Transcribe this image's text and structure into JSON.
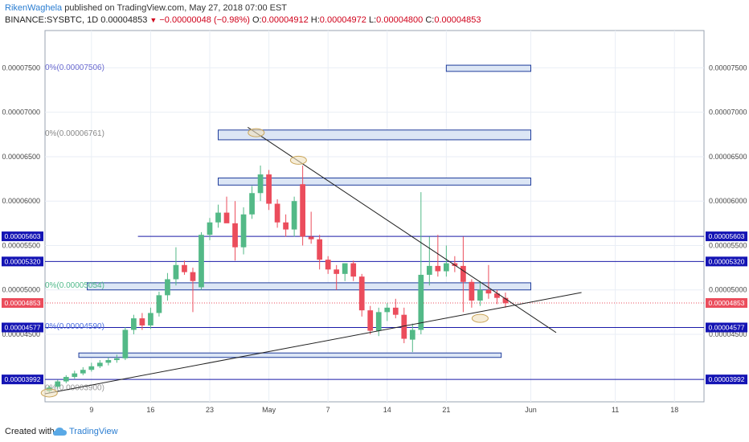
{
  "header": {
    "author": "RikenWaghela",
    "published_text": "published on TradingView.com, May 27, 2018 07:00 EST",
    "symbol": "BINANCE:SYSBTC, 1D",
    "last": "0.00004853",
    "change_arrow": "▼",
    "change": "−0.00000048 (−0.98%)",
    "o_label": "O:",
    "o_value": "0.00004912",
    "h_label": "H:",
    "h_value": "0.00004972",
    "l_label": "L:",
    "l_value": "0.00004800",
    "c_label": "C:",
    "c_value": "0.00004853"
  },
  "footer": {
    "created_with": "Created with",
    "brand": "TradingView"
  },
  "colors": {
    "up": "#53b987",
    "down": "#eb4d5c",
    "level_line": "#1a1aa8",
    "box_fill": "#dce6f5",
    "box_stroke": "#1f3d9c",
    "grid": "#e9eef5",
    "price_label_bg": "#1414b4"
  },
  "chart_data": {
    "type": "candlestick",
    "y_axis": {
      "min": 3.74e-05,
      "max": 7.92e-05,
      "ticks": [
        "0.00007500",
        "0.00007000",
        "0.00006500",
        "0.00006000",
        "0.00005500",
        "0.00005000",
        "0.00004500"
      ],
      "tick_values": [
        7.5e-05,
        7e-05,
        6.5e-05,
        6e-05,
        5.5e-05,
        5e-05,
        4.5e-05
      ]
    },
    "x_axis": {
      "ticks": [
        {
          "label": "9",
          "day": 9
        },
        {
          "label": "16",
          "day": 16
        },
        {
          "label": "23",
          "day": 23
        },
        {
          "label": "May",
          "day": 30
        },
        {
          "label": "7",
          "day": 37
        },
        {
          "label": "14",
          "day": 44
        },
        {
          "label": "21",
          "day": 51
        },
        {
          "label": "Jun",
          "day": 61
        },
        {
          "label": "11",
          "day": 71
        },
        {
          "label": "18",
          "day": 78
        }
      ],
      "day_min": 3.5,
      "day_max": 81.5
    },
    "candles": [
      [
        4,
        3.86e-05,
        3.92e-05,
        3.84e-05,
        3.9e-05
      ],
      [
        5,
        3.91e-05,
        3.99e-05,
        3.89e-05,
        3.97e-05
      ],
      [
        6,
        3.97e-05,
        4.04e-05,
        3.95e-05,
        4.02e-05
      ],
      [
        7,
        4.02e-05,
        4.09e-05,
        4e-05,
        4.06e-05
      ],
      [
        8,
        4.06e-05,
        4.13e-05,
        4.04e-05,
        4.1e-05
      ],
      [
        9,
        4.1e-05,
        4.18e-05,
        4.08e-05,
        4.14e-05
      ],
      [
        10,
        4.14e-05,
        4.21e-05,
        4.12e-05,
        4.18e-05
      ],
      [
        11,
        4.18e-05,
        4.24e-05,
        4.15e-05,
        4.21e-05
      ],
      [
        12,
        4.21e-05,
        4.27e-05,
        4.18e-05,
        4.23e-05
      ],
      [
        13,
        4.23e-05,
        4.58e-05,
        4.21e-05,
        4.55e-05
      ],
      [
        14,
        4.55e-05,
        4.72e-05,
        4.5e-05,
        4.68e-05
      ],
      [
        15,
        4.68e-05,
        4.74e-05,
        4.55e-05,
        4.6e-05
      ],
      [
        16,
        4.6e-05,
        4.8e-05,
        4.56e-05,
        4.74e-05
      ],
      [
        17,
        4.74e-05,
        4.98e-05,
        4.7e-05,
        4.94e-05
      ],
      [
        18,
        4.94e-05,
        5.19e-05,
        4.88e-05,
        5.12e-05
      ],
      [
        19,
        5.12e-05,
        5.48e-05,
        5.05e-05,
        5.28e-05
      ],
      [
        20,
        5.28e-05,
        5.33e-05,
        5.17e-05,
        5.2e-05
      ],
      [
        21,
        5.2e-05,
        5.25e-05,
        4.75e-05,
        5.1e-05
      ],
      [
        22,
        5.03e-05,
        5.65e-05,
        5e-05,
        5.62e-05
      ],
      [
        23,
        5.62e-05,
        5.81e-05,
        5.56e-05,
        5.76e-05
      ],
      [
        24,
        5.76e-05,
        5.96e-05,
        5.7e-05,
        5.87e-05
      ],
      [
        25,
        5.87e-05,
        6.05e-05,
        5.78e-05,
        5.75e-05
      ],
      [
        26,
        5.75e-05,
        6e-05,
        5.33e-05,
        5.48e-05
      ],
      [
        27,
        5.48e-05,
        5.93e-05,
        5.4e-05,
        5.85e-05
      ],
      [
        28,
        5.85e-05,
        6.17e-05,
        5.8e-05,
        6.09e-05
      ],
      [
        29,
        6.09e-05,
        6.4e-05,
        6e-05,
        6.3e-05
      ],
      [
        30,
        6.3e-05,
        6.35e-05,
        5.9e-05,
        5.97e-05
      ],
      [
        31,
        5.97e-05,
        6.02e-05,
        5.7e-05,
        5.76e-05
      ],
      [
        32,
        5.76e-05,
        5.85e-05,
        5.6e-05,
        5.68e-05
      ],
      [
        33,
        5.68e-05,
        6.05e-05,
        5.6e-05,
        6e-05
      ],
      [
        34,
        6.19e-05,
        6.4e-05,
        5.5e-05,
        5.6e-05
      ],
      [
        35,
        5.6e-05,
        5.88e-05,
        5.52e-05,
        5.57e-05
      ],
      [
        36,
        5.57e-05,
        5.62e-05,
        5.23e-05,
        5.34e-05
      ],
      [
        37,
        5.34e-05,
        5.38e-05,
        5.18e-05,
        5.23e-05
      ],
      [
        38,
        5.23e-05,
        5.28e-05,
        5e-05,
        5.18e-05
      ],
      [
        39,
        5.18e-05,
        5.3e-05,
        5.1e-05,
        5.3e-05
      ],
      [
        40,
        5.3e-05,
        5.33e-05,
        5.1e-05,
        5.15e-05
      ],
      [
        41,
        5.15e-05,
        5.18e-05,
        4.7e-05,
        4.77e-05
      ],
      [
        42,
        4.77e-05,
        4.82e-05,
        4.5e-05,
        4.54e-05
      ],
      [
        43,
        4.54e-05,
        4.8e-05,
        4.48e-05,
        4.75e-05
      ],
      [
        44,
        4.75e-05,
        4.85e-05,
        4.65e-05,
        4.8e-05
      ],
      [
        45,
        4.8e-05,
        4.9e-05,
        4.68e-05,
        4.72e-05
      ],
      [
        46,
        4.72e-05,
        4.8e-05,
        4.4e-05,
        4.45e-05
      ],
      [
        47,
        4.44e-05,
        4.62e-05,
        4.3e-05,
        4.55e-05
      ],
      [
        48,
        4.55e-05,
        6.1e-05,
        4.5e-05,
        5.17e-05
      ],
      [
        49,
        5.17e-05,
        5.6e-05,
        5.05e-05,
        5.27e-05
      ],
      [
        50,
        5.27e-05,
        5.62e-05,
        5.15e-05,
        5.21e-05
      ],
      [
        51,
        5.21e-05,
        5.5e-05,
        5.15e-05,
        5.3e-05
      ],
      [
        52,
        5.3e-05,
        5.38e-05,
        5.2e-05,
        5.27e-05
      ],
      [
        53,
        5.27e-05,
        5.6e-05,
        4.75e-05,
        5.09e-05
      ],
      [
        54,
        5.09e-05,
        5.12e-05,
        4.8e-05,
        4.88e-05
      ],
      [
        55,
        4.88e-05,
        5.1e-05,
        4.82e-05,
        5e-05
      ],
      [
        56,
        5e-05,
        5.28e-05,
        4.9e-05,
        4.96e-05
      ],
      [
        57,
        4.96e-05,
        5e-05,
        4.84e-05,
        4.91e-05
      ],
      [
        58,
        4.91e-05,
        4.97e-05,
        4.8e-05,
        4.85e-05
      ]
    ],
    "levels": [
      {
        "price": 5.603e-05,
        "label": "0.00005603",
        "day_start": 14.5
      },
      {
        "price": 5.32e-05,
        "label": "0.00005320",
        "day_start": 3.5
      },
      {
        "price": 4.577e-05,
        "label": "0.00004577",
        "day_start": 3.5
      },
      {
        "price": 3.992e-05,
        "label": "0.00003992",
        "day_start": 3.5
      }
    ],
    "current_price": {
      "price": 4.853e-05,
      "label": "0.00004853"
    },
    "zones": [
      {
        "day_start": 51,
        "day_end": 61,
        "top": 7.53e-05,
        "bottom": 7.46e-05
      },
      {
        "day_start": 24,
        "day_end": 61,
        "top": 6.8e-05,
        "bottom": 6.69e-05
      },
      {
        "day_start": 24,
        "day_end": 61,
        "top": 6.26e-05,
        "bottom": 6.18e-05
      },
      {
        "day_start": 8.5,
        "day_end": 61,
        "top": 5.08e-05,
        "bottom": 5e-05
      },
      {
        "day_start": 7.5,
        "day_end": 57.5,
        "top": 4.29e-05,
        "bottom": 4.24e-05
      }
    ],
    "fib_labels": [
      {
        "text": "0%(0.00007506)",
        "price": 7.506e-05,
        "day": 3.5,
        "color": "#6a6ad0"
      },
      {
        "text": "0%(0.00006761)",
        "price": 6.761e-05,
        "day": 3.5,
        "color": "#888888"
      },
      {
        "text": "0%(0.00005054)",
        "price": 5.054e-05,
        "day": 3.5,
        "color": "#4fb98a"
      },
      {
        "text": "0%(0.00004590)",
        "price": 4.59e-05,
        "day": 3.5,
        "color": "#4a6ee0"
      },
      {
        "text": "0%(0.00003900)",
        "price": 3.9e-05,
        "day": 3.5,
        "color": "#999999"
      }
    ],
    "trendlines": [
      {
        "day1": 3.5,
        "p1": 3.83e-05,
        "day2": 67,
        "p2": 4.97e-05
      },
      {
        "day1": 27.5,
        "p1": 6.83e-05,
        "day2": 64,
        "p2": 4.52e-05
      }
    ],
    "ellipses": [
      {
        "day": 28.5,
        "price": 6.77e-05
      },
      {
        "day": 33.5,
        "price": 6.46e-05
      },
      {
        "day": 55,
        "price": 4.68e-05
      },
      {
        "day": 4,
        "price": 3.84e-05
      }
    ]
  }
}
